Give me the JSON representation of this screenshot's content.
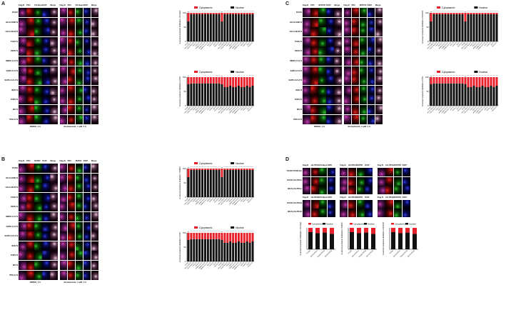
{
  "panels": {
    "A": {
      "letter": "A",
      "headers_left": [
        "Flag-N",
        "PKC",
        "FG-Nups",
        "DAPI",
        "Merge"
      ],
      "headers_right": [
        "Flag-N",
        "PKC",
        "FG-Nups",
        "DAPI",
        "Merge"
      ],
      "rows": [
        "PXJ40",
        "HCoV-229E N",
        "HCoV-NL63 N",
        "TGEV N",
        "PEDV N",
        "MERS-CoV N",
        "SARS-CoV N",
        "SARS-CoV-2 N",
        "MHV N",
        "PHEV N",
        "IBV N",
        "PDCoV N"
      ],
      "caption_left": "DMSO, 1 h",
      "caption_right": "Enzastaurin, 1 μM, 1 h",
      "charts": [
        {
          "ylabel": "% nuclear/cytoplasmic distribution of FG-Nups",
          "sig": [
            "ns",
            "****",
            "****",
            "****",
            "****",
            "****",
            "****",
            "****",
            "****",
            "****",
            "****",
            "****"
          ]
        },
        {
          "ylabel": "% nuclear/cytoplasmic distribution of PKC",
          "sig": [
            "ns",
            "*",
            "*",
            "*",
            "*",
            "*",
            "****",
            "*",
            "**",
            "**",
            "****",
            "****"
          ]
        }
      ]
    },
    "B": {
      "letter": "B",
      "headers_left": [
        "Flag-N",
        "PKC",
        "NUP62",
        "DAPI",
        "Merge"
      ],
      "headers_right": [
        "Flag-N",
        "PKC",
        "NUP62",
        "DAPI",
        "Merge"
      ],
      "rows": [
        "PXJ40",
        "HCoV-229E N",
        "HCoV-NL63 N",
        "TGEV N",
        "PEDV N",
        "MERS-CoV N",
        "SARS-CoV N",
        "SARS-CoV-2 N",
        "MHV N",
        "PHEV N",
        "IBV N",
        "PDCoV N"
      ],
      "caption_left": "DMSO, 1 h",
      "caption_right": "Enzastaurin, 1 μM, 1 h",
      "charts": [
        {
          "ylabel": "% nuclear/cytoplasmic distribution of NUP62",
          "sig": [
            "ns",
            "****",
            "****",
            "****",
            "****",
            "****",
            "***",
            "****",
            "***",
            "****",
            "****",
            "****"
          ]
        },
        {
          "ylabel": "% nuclear/cytoplasmic distribution of PKC",
          "sig": [
            "ns",
            "****",
            "****",
            "****",
            "****",
            "****",
            "****",
            "****",
            "****",
            "****",
            "****",
            "****"
          ]
        }
      ]
    },
    "C": {
      "letter": "C",
      "headers_left": [
        "Flag-N",
        "PKC",
        "NUP153",
        "DAPI",
        "Merge"
      ],
      "headers_right": [
        "Flag-N",
        "PKC",
        "NUP153",
        "DAPI",
        "Merge"
      ],
      "rows": [
        "PXJ40",
        "HCoV-229E N",
        "HCoV-NL63 N",
        "TGEV N",
        "PEDV N",
        "MERS-CoV N",
        "SARS-CoV N",
        "SARS-CoV-2 N",
        "MHV N",
        "PHEV N",
        "IBV N",
        "PDCoV N"
      ],
      "caption_left": "DMSO, 1 h",
      "caption_right": "Enzastaurin, 1 μM, 1 h",
      "charts": [
        {
          "ylabel": "% nuclear/cytoplasmic distribution of NUP153",
          "sig": [
            "ns",
            "****",
            "****",
            "****",
            "****",
            "****",
            "****",
            "****",
            "****",
            "****",
            "****",
            "****"
          ]
        },
        {
          "ylabel": "% nuclear/cytoplasmic distribution of PKC",
          "sig": [
            "ns",
            "****",
            "****",
            "****",
            "****",
            "****",
            "****",
            "****",
            "****",
            "****",
            "****",
            "****"
          ]
        }
      ]
    },
    "D": {
      "letter": "D",
      "groups": [
        {
          "headers": [
            "Flag-N",
            "HA-PKCα",
            "FG-Nups",
            "DAPI"
          ]
        },
        {
          "headers": [
            "Flag-N",
            "HA-PKCα",
            "NUP62",
            "DAPI"
          ]
        },
        {
          "headers": [
            "Flag-N",
            "HA-PKCα",
            "NUP153",
            "DAPI"
          ]
        }
      ],
      "groups_row2": [
        {
          "headers": [
            "Flag-N",
            "HA-PKCβ",
            "FG-Nups",
            "DAPI"
          ]
        },
        {
          "headers": [
            "Flag-N",
            "HA-PKCβ",
            "NUP62",
            "DAPI"
          ]
        },
        {
          "headers": [
            "Flag-N",
            "HA-PKCβ",
            "NUP153",
            "DAPI"
          ]
        }
      ],
      "rows": [
        "PXJ40 PCMV-HA",
        "PXJ40 HA-PKCα",
        "IBV-N HA-PKCα",
        "PXJ40 HA-PKCβ",
        "IBV-N HA-PKCβ"
      ],
      "charts": [
        {
          "ylabel": "% nuclear/cytoplasmic distribution of FG-Nups"
        },
        {
          "ylabel": "% nuclear/cytoplasmic distribution of NUP62"
        },
        {
          "ylabel": "% nuclear/cytoplasmic distribution of NUP153"
        }
      ],
      "xcats": [
        "PXJ40",
        "IBV-N+PKCα",
        "PXJ40+PKCβ",
        "IBV-N+PKCβ"
      ]
    }
  },
  "legend": {
    "cyto": "Cytoplasmic",
    "nuc": "Nuclear"
  },
  "bar_xcats": [
    "PXJ40",
    "HCoV-229E N",
    "HCoV-NL63 N",
    "TGEV N",
    "PEDV N",
    "MERS-CoV N",
    "SARS-CoV N",
    "SARS-CoV-2 N",
    "MHV N",
    "PHEV N",
    "IBV N",
    "PDCoV N",
    "PXJ40",
    "HCoV-229E N",
    "HCoV-NL63 N",
    "TGEV N",
    "PEDV N",
    "MERS-CoV N",
    "SARS-CoV N",
    "SARS-CoV-2 N",
    "MHV N",
    "PHEV N",
    "IBV N",
    "PDCoV N"
  ],
  "colors": {
    "red": "#e8202a",
    "black": "#111111"
  },
  "chart_data": [
    {
      "type": "bar",
      "series": [
        {
          "name": "Cytoplasmic",
          "values": [
            30,
            5,
            5,
            5,
            5,
            5,
            5,
            5,
            5,
            5,
            5,
            5,
            30,
            5,
            5,
            5,
            5,
            5,
            5,
            5,
            5,
            5,
            5,
            5
          ]
        },
        {
          "name": "Nuclear",
          "values": [
            70,
            95,
            95,
            95,
            95,
            95,
            95,
            95,
            95,
            95,
            95,
            95,
            70,
            95,
            95,
            95,
            95,
            95,
            95,
            95,
            95,
            95,
            95,
            95
          ]
        }
      ],
      "ylim": [
        0,
        100
      ]
    },
    {
      "type": "bar",
      "series": [
        {
          "name": "Cytoplasmic",
          "values": [
            25,
            22,
            22,
            22,
            22,
            22,
            22,
            22,
            22,
            22,
            22,
            22,
            25,
            35,
            35,
            30,
            35,
            35,
            30,
            35,
            35,
            30,
            35,
            30
          ]
        },
        {
          "name": "Nuclear",
          "values": [
            75,
            78,
            78,
            78,
            78,
            78,
            78,
            78,
            78,
            78,
            78,
            78,
            75,
            65,
            65,
            70,
            65,
            65,
            70,
            65,
            65,
            70,
            65,
            70
          ]
        }
      ],
      "ylim": [
        0,
        100
      ]
    }
  ]
}
